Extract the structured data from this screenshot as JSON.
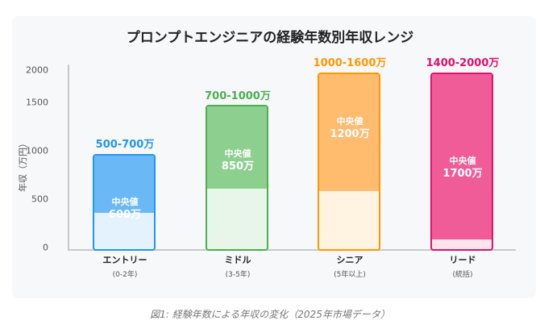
{
  "chart_data": {
    "type": "bar",
    "title": "プロンプトエンジニアの経験年数別年収レンジ",
    "ylabel": "年収（万円）",
    "yticks": [
      "2000",
      "1500",
      "1000",
      "500",
      "0"
    ],
    "ylim": [
      0,
      2000
    ],
    "grid": false,
    "categories": [
      {
        "name": "エントリー",
        "sub": "(0-2年)",
        "range": "500-700万",
        "min": 500,
        "max": 700,
        "median_label": "中央値",
        "median": "600万",
        "median_value": 600,
        "color": "#2196f3",
        "fill": "#6bb8f7",
        "light": "#e3f2fd"
      },
      {
        "name": "ミドル",
        "sub": "(3-5年)",
        "range": "700-1000万",
        "min": 700,
        "max": 1000,
        "median_label": "中央値",
        "median": "850万",
        "median_value": 850,
        "color": "#4caf50",
        "fill": "#8dcf8f",
        "light": "#e8f5e9"
      },
      {
        "name": "シニア",
        "sub": "(5年以上)",
        "range": "1000-1600万",
        "min": 1000,
        "max": 1600,
        "median_label": "中央値",
        "median": "1200万",
        "median_value": 1200,
        "color": "#ff9800",
        "fill": "#ffbb6e",
        "light": "#fff3e2"
      },
      {
        "name": "リード",
        "sub": "(統括)",
        "range": "1400-2000万",
        "min": 1400,
        "max": 2000,
        "median_label": "中央値",
        "median": "1700万",
        "median_value": 1700,
        "color": "#e2106a",
        "fill": "#f05c97",
        "light": "#fce4ec"
      }
    ]
  },
  "caption": "図1: 経験年数による年収の変化（2025年市場データ）"
}
